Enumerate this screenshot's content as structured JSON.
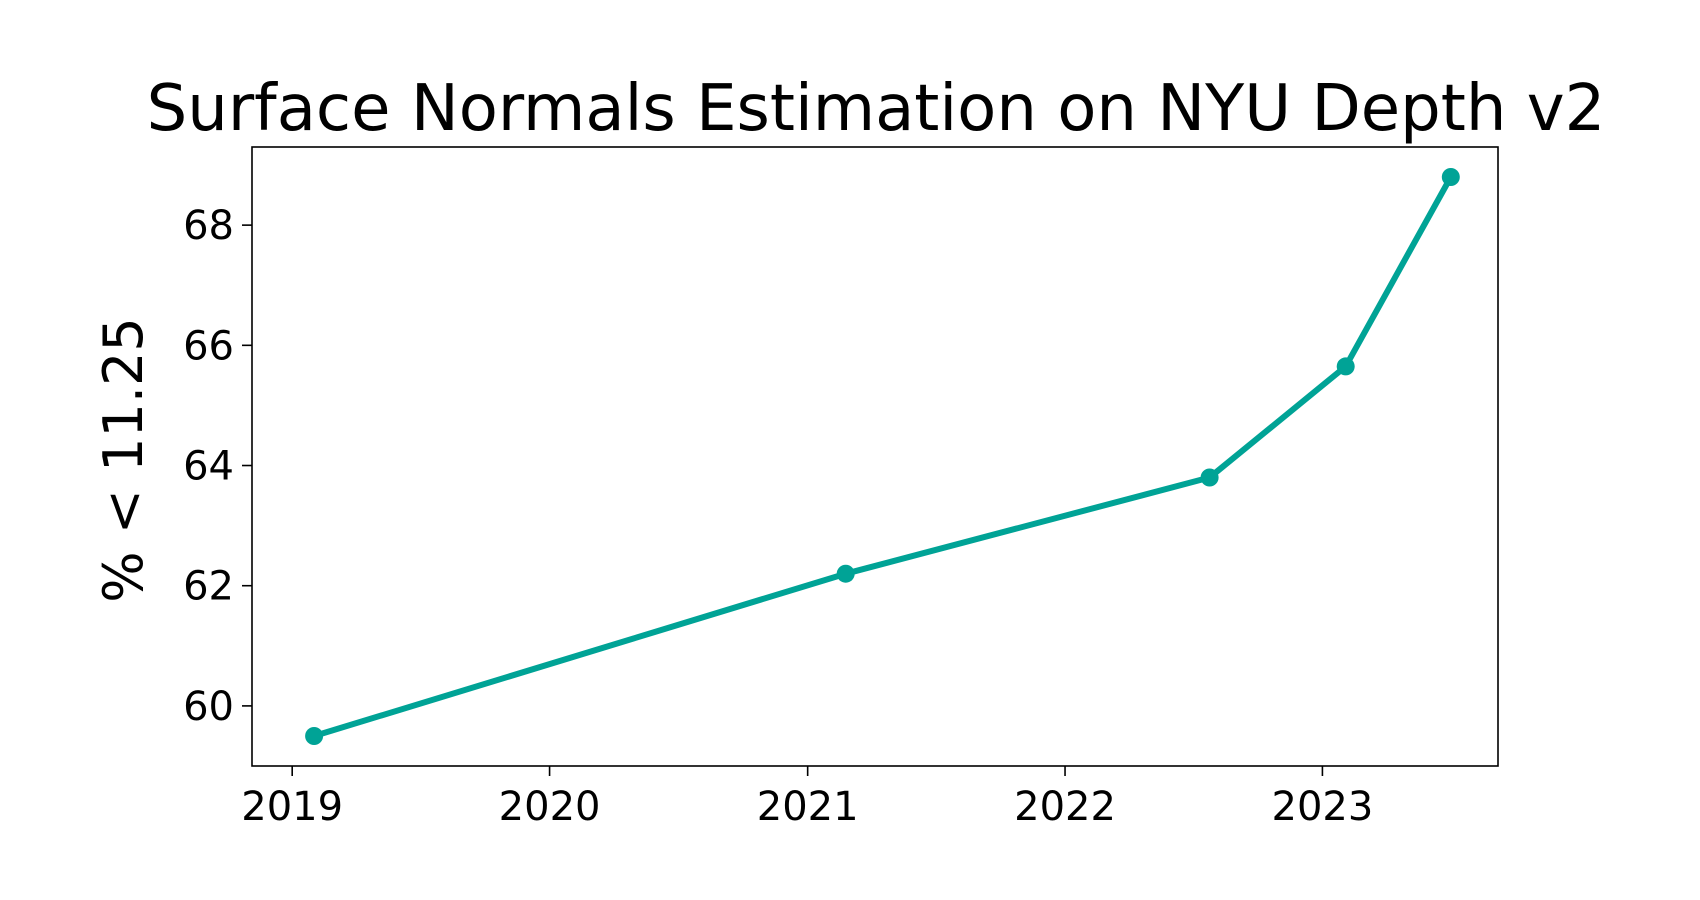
{
  "chart_data": {
    "type": "line",
    "title": "Surface Normals Estimation on NYU Depth v2",
    "xlabel": "",
    "ylabel": "% < 11.25",
    "x_ticks": [
      "2019",
      "2020",
      "2021",
      "2022",
      "2023"
    ],
    "y_ticks": [
      "60",
      "62",
      "64",
      "66",
      "68"
    ],
    "xlim": [
      "2018-11-05",
      "2023-09-07"
    ],
    "ylim": [
      59.0,
      69.3
    ],
    "grid": false,
    "series": [
      {
        "color": "#00a396",
        "points": [
          {
            "x": "2019-02-01",
            "y": 59.5
          },
          {
            "x": "2021-02-24",
            "y": 62.2
          },
          {
            "x": "2022-07-25",
            "y": 63.8
          },
          {
            "x": "2023-02-03",
            "y": 65.65
          },
          {
            "x": "2023-07-02",
            "y": 68.8
          }
        ]
      }
    ]
  }
}
